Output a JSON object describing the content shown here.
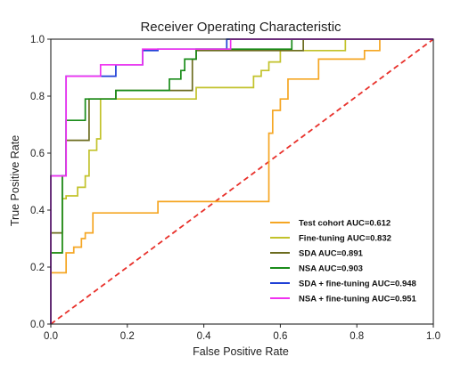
{
  "chart_data": {
    "type": "line",
    "title": "Receiver Operating Characteristic",
    "xlabel": "False Positive Rate",
    "ylabel": "True Positive Rate",
    "xlim": [
      0.0,
      1.0
    ],
    "ylim": [
      0.0,
      1.0
    ],
    "xticks": [
      "0.0",
      "0.2",
      "0.4",
      "0.6",
      "0.8",
      "1.0"
    ],
    "yticks": [
      "0.0",
      "0.2",
      "0.4",
      "0.6",
      "0.8",
      "1.0"
    ],
    "grid": false,
    "legend_position": "lower-right",
    "series": [
      {
        "name": "Test cohort AUC=0.612",
        "color": "#f5a623",
        "x": [
          0.0,
          0.0,
          0.04,
          0.04,
          0.06,
          0.06,
          0.08,
          0.08,
          0.09,
          0.09,
          0.11,
          0.11,
          0.28,
          0.28,
          0.57,
          0.57,
          0.58,
          0.58,
          0.6,
          0.6,
          0.62,
          0.62,
          0.7,
          0.7,
          0.82,
          0.82,
          0.84,
          0.84,
          0.86,
          0.86,
          1.0
        ],
        "y": [
          0.0,
          0.18,
          0.18,
          0.25,
          0.25,
          0.27,
          0.27,
          0.3,
          0.3,
          0.32,
          0.32,
          0.39,
          0.39,
          0.43,
          0.43,
          0.67,
          0.67,
          0.75,
          0.75,
          0.79,
          0.79,
          0.86,
          0.86,
          0.93,
          0.93,
          0.96,
          0.96,
          0.96,
          0.96,
          1.0,
          1.0
        ]
      },
      {
        "name": "Fine-tuning AUC=0.832",
        "color": "#c2c22a",
        "x": [
          0.0,
          0.0,
          0.03,
          0.03,
          0.04,
          0.04,
          0.07,
          0.07,
          0.09,
          0.09,
          0.1,
          0.1,
          0.12,
          0.12,
          0.13,
          0.13,
          0.38,
          0.38,
          0.53,
          0.53,
          0.55,
          0.55,
          0.57,
          0.57,
          0.6,
          0.6,
          0.64,
          0.64,
          0.77,
          0.77,
          1.0
        ],
        "y": [
          0.0,
          0.25,
          0.25,
          0.44,
          0.44,
          0.45,
          0.45,
          0.48,
          0.48,
          0.52,
          0.52,
          0.61,
          0.61,
          0.65,
          0.65,
          0.79,
          0.79,
          0.83,
          0.83,
          0.87,
          0.87,
          0.89,
          0.89,
          0.92,
          0.92,
          0.96,
          0.96,
          0.96,
          0.96,
          1.0,
          1.0
        ]
      },
      {
        "name": "SDA AUC=0.891",
        "color": "#6b6b1e",
        "x": [
          0.0,
          0.0,
          0.03,
          0.03,
          0.04,
          0.04,
          0.08,
          0.08,
          0.1,
          0.1,
          0.17,
          0.17,
          0.37,
          0.37,
          0.38,
          0.38,
          0.6,
          0.6,
          0.66,
          0.66,
          1.0
        ],
        "y": [
          0.0,
          0.32,
          0.32,
          0.52,
          0.52,
          0.645,
          0.645,
          0.645,
          0.645,
          0.79,
          0.79,
          0.82,
          0.82,
          0.93,
          0.93,
          0.96,
          0.96,
          0.96,
          0.96,
          1.0,
          1.0
        ]
      },
      {
        "name": "NSA AUC=0.903",
        "color": "#1a8c1a",
        "x": [
          0.0,
          0.0,
          0.03,
          0.03,
          0.04,
          0.04,
          0.09,
          0.09,
          0.17,
          0.17,
          0.31,
          0.31,
          0.34,
          0.34,
          0.35,
          0.35,
          0.38,
          0.38,
          0.63,
          0.63,
          1.0
        ],
        "y": [
          0.0,
          0.25,
          0.25,
          0.52,
          0.52,
          0.715,
          0.715,
          0.79,
          0.79,
          0.82,
          0.82,
          0.86,
          0.86,
          0.89,
          0.89,
          0.93,
          0.93,
          0.965,
          0.965,
          1.0,
          1.0
        ]
      },
      {
        "name": "SDA + fine-tuning AUC=0.948",
        "color": "#1f3fd6",
        "x": [
          0.0,
          0.0,
          0.03,
          0.03,
          0.04,
          0.04,
          0.17,
          0.17,
          0.24,
          0.24,
          0.28,
          0.28,
          0.46,
          0.46,
          0.5,
          0.5,
          1.0
        ],
        "y": [
          0.0,
          0.52,
          0.52,
          0.52,
          0.52,
          0.87,
          0.87,
          0.91,
          0.91,
          0.96,
          0.96,
          0.965,
          0.965,
          1.0,
          1.0,
          1.0,
          1.0
        ]
      },
      {
        "name": "NSA + fine-tuning AUC=0.951",
        "color": "#f032f0",
        "x": [
          0.0,
          0.0,
          0.03,
          0.03,
          0.04,
          0.04,
          0.13,
          0.13,
          0.17,
          0.17,
          0.24,
          0.24,
          0.47,
          0.47,
          1.0
        ],
        "y": [
          0.0,
          0.52,
          0.52,
          0.52,
          0.52,
          0.87,
          0.87,
          0.91,
          0.91,
          0.91,
          0.91,
          0.965,
          0.965,
          1.0,
          1.0
        ]
      }
    ],
    "reference_line": {
      "color": "#e8302a",
      "style": "dashed",
      "x": [
        0.0,
        1.0
      ],
      "y": [
        0.0,
        1.0
      ]
    }
  }
}
